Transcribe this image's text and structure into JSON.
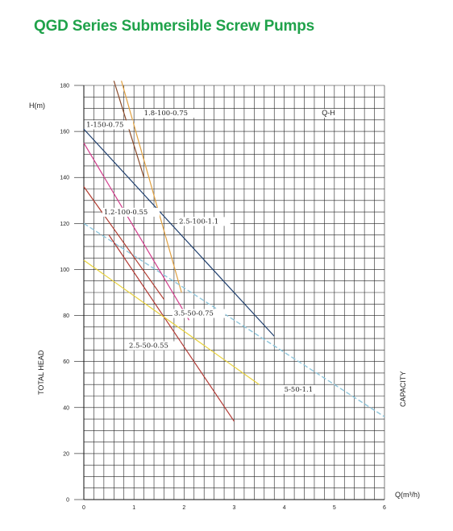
{
  "title": "QGD Series  Submersible Screw Pumps",
  "colors": {
    "title": "#1fa24a",
    "grid": "#222222",
    "series": {
      "1-150-0.75": "#1f3f6e",
      "1.8-100-0.75": "#e0a040",
      "1.2-100-0.55": "#b03a2e",
      "2.5-100-1.1": "#2a4a7a",
      "3.5-50-0.75": "#d23c8c",
      "2.5-50-0.55": "#b23a35",
      "5-50-1.1": "#e8d13a",
      "dashed": "#8ec6dc",
      "extra": "#8a4a2a"
    }
  },
  "chart_data": {
    "type": "line",
    "title": "QGD Series  Submersible Screw Pumps",
    "ylabel_top": "H(m)",
    "ylabel_side": "TOTAL HEAD",
    "xlabel_right": "Q(m³/h)",
    "xlabel_side": "CAPACITY",
    "curve_label": "Q-H",
    "xlim": [
      0,
      6
    ],
    "ylim": [
      0,
      180
    ],
    "x_ticks": [
      0,
      1,
      2,
      3,
      4,
      5,
      6
    ],
    "y_ticks": [
      0,
      20,
      40,
      60,
      80,
      100,
      120,
      140,
      160,
      180
    ],
    "grid": true,
    "series": [
      {
        "name": "1-150-0.75",
        "color": "#1f3f6e",
        "x": [
          0,
          3.8
        ],
        "y": [
          161,
          71
        ]
      },
      {
        "name": "1.8-100-0.75",
        "color": "#e0a040",
        "x": [
          0.75,
          1.95
        ],
        "y": [
          182,
          90
        ]
      },
      {
        "name": "",
        "color": "#8a4a2a",
        "x": [
          0.6,
          1.2
        ],
        "y": [
          182,
          140
        ]
      },
      {
        "name": "2.5-100-1.1",
        "color": "#3a6a8a",
        "x": [
          0,
          6
        ],
        "y": [
          120,
          36
        ],
        "dashed": true
      },
      {
        "name": "1.2-100-0.55",
        "color": "#b03a2e",
        "x": [
          0,
          1.6
        ],
        "y": [
          136,
          87
        ]
      },
      {
        "name": "3.5-50-0.75",
        "color": "#d23c8c",
        "x": [
          0,
          2.1
        ],
        "y": [
          155,
          78
        ]
      },
      {
        "name": "2.5-50-0.55",
        "color": "#b23a35",
        "x": [
          0.5,
          3.0
        ],
        "y": [
          115,
          34
        ]
      },
      {
        "name": "5-50-1.1",
        "color": "#e8d13a",
        "x": [
          0,
          3.5
        ],
        "y": [
          104,
          50
        ]
      }
    ],
    "annotations": [
      {
        "text": "1.8-100-0.75",
        "x": 1.2,
        "y": 167
      },
      {
        "text": "1-150-0.75",
        "x": 0.05,
        "y": 162
      },
      {
        "text": "1.2-100-0.55",
        "x": 0.4,
        "y": 124
      },
      {
        "text": "2.5-100-1.1",
        "x": 1.9,
        "y": 120
      },
      {
        "text": "3.5-50-0.75",
        "x": 1.8,
        "y": 80
      },
      {
        "text": "2.5-50-0.55",
        "x": 0.9,
        "y": 66
      },
      {
        "text": "5-50-1.1",
        "x": 4.0,
        "y": 47
      },
      {
        "text": "Q-H",
        "x": 4.75,
        "y": 167
      }
    ]
  }
}
